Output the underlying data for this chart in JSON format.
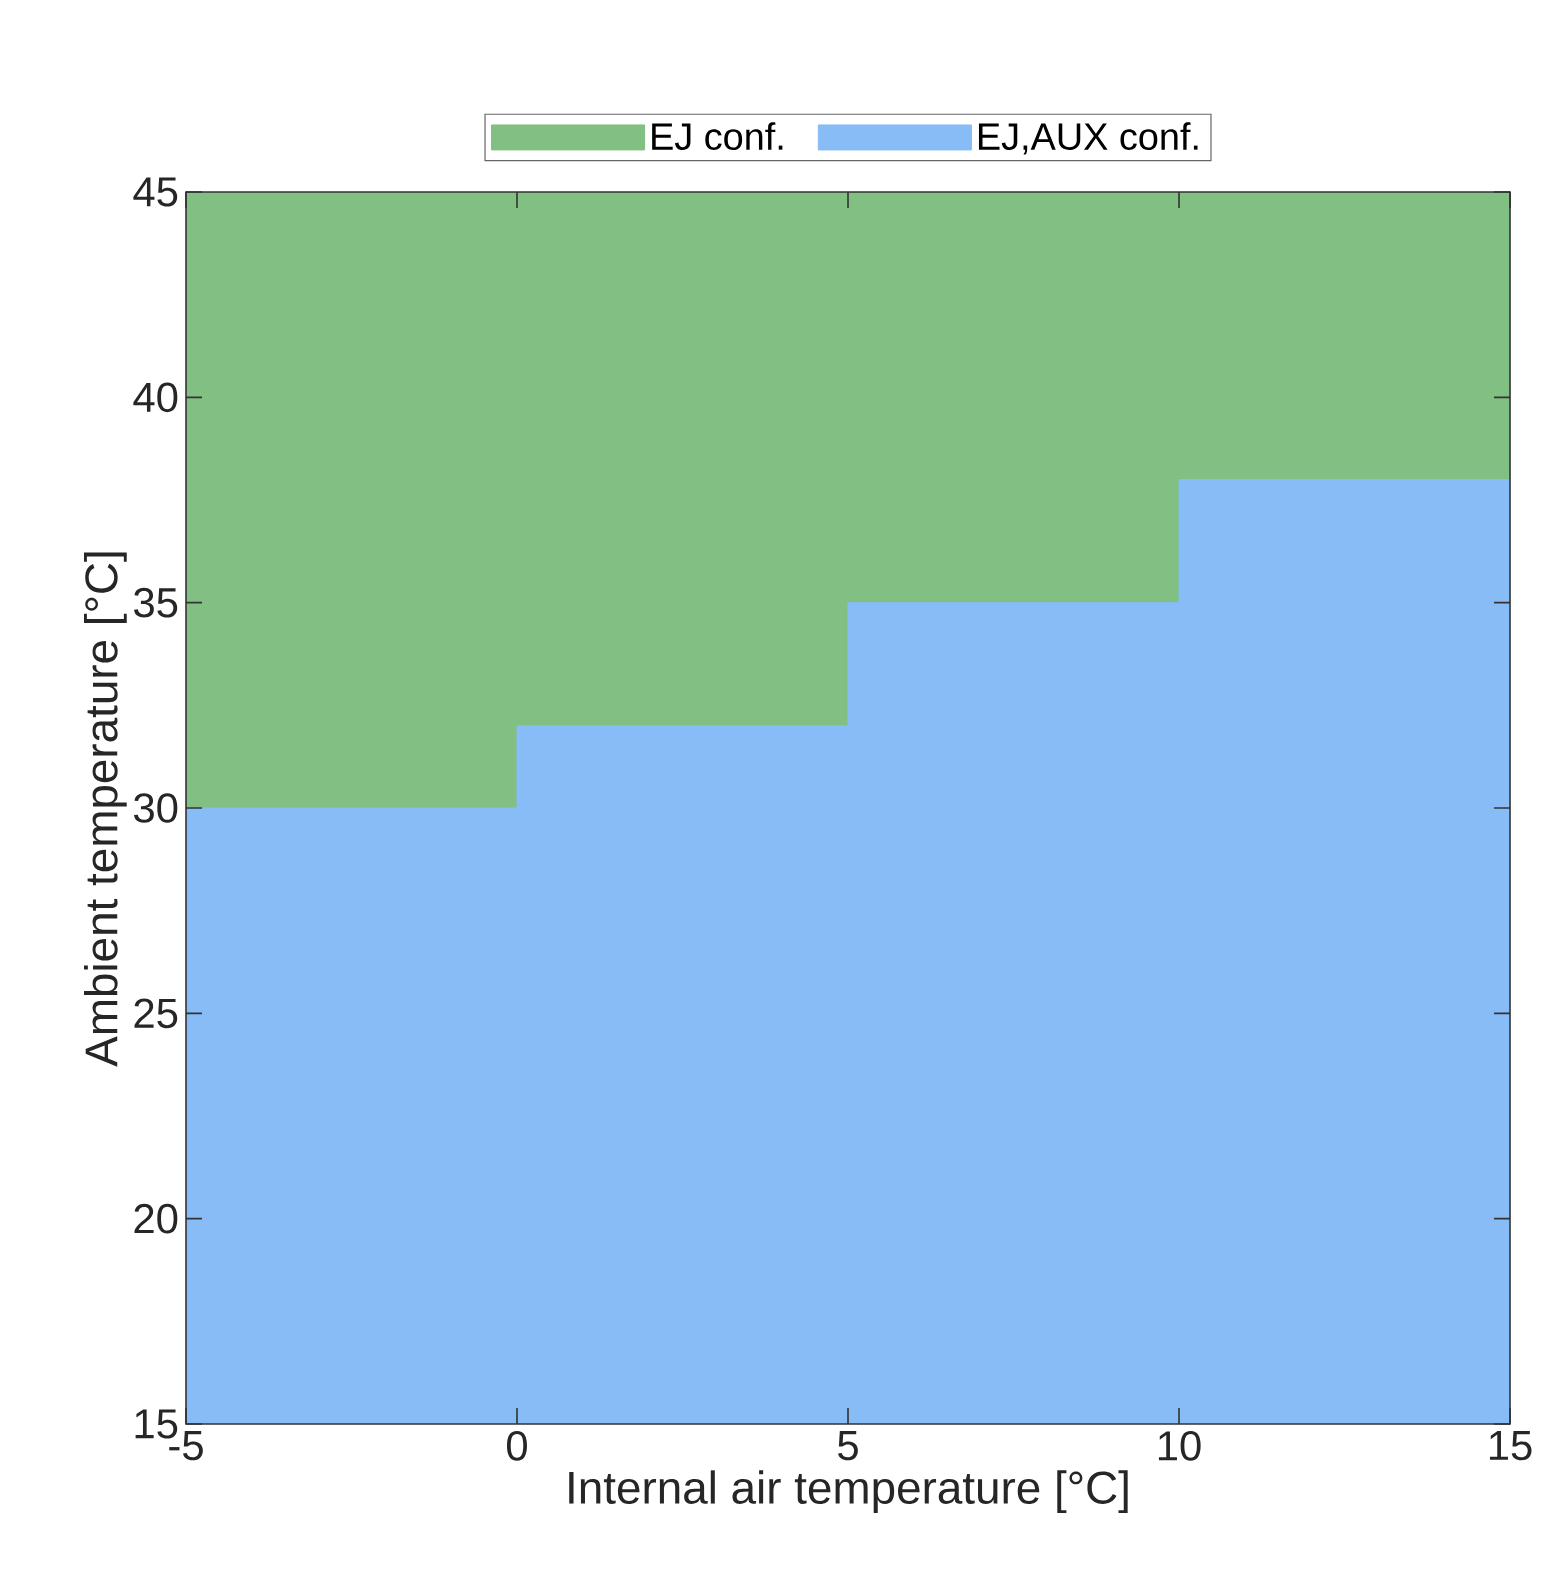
{
  "chart_data": {
    "type": "area",
    "xlabel": "Internal air temperature [°C]",
    "ylabel": "Ambient temperature [°C]",
    "series": [
      {
        "name": "EJ conf.",
        "color": "#82bf82",
        "x": [
          -5,
          15
        ],
        "values": [
          45,
          45
        ]
      },
      {
        "name": "EJ,AUX conf.",
        "color": "#87bcf7",
        "x": [
          -5,
          0,
          0,
          5,
          5,
          10,
          10,
          15
        ],
        "values": [
          30,
          30,
          32,
          32,
          35,
          35,
          38,
          38
        ]
      }
    ],
    "xlim": [
      -5,
      15
    ],
    "ylim": [
      15,
      45
    ],
    "xticks": [
      -5,
      0,
      5,
      10,
      15
    ],
    "yticks": [
      15,
      20,
      25,
      30,
      35,
      40,
      45
    ],
    "legend": "top"
  }
}
